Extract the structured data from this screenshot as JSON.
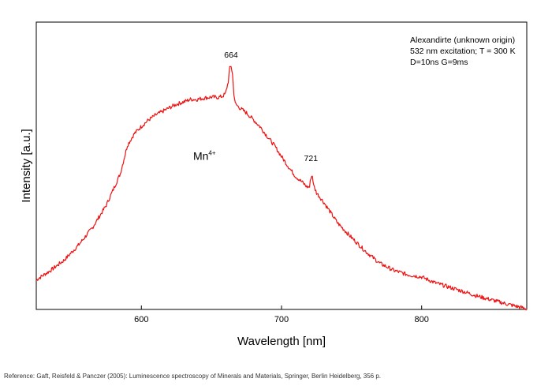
{
  "chart_data": {
    "type": "line",
    "xlabel": "Wavelength [nm]",
    "ylabel": "Intensity [a.u.]",
    "xlim": [
      525,
      875
    ],
    "ylim": [
      0,
      1
    ],
    "x_ticks": [
      600,
      700,
      800
    ],
    "y_ticks_shown": false,
    "grid": false,
    "legend_position": "top-right",
    "legend_lines": [
      "Alexandirte (unknown origin)",
      "532 nm excitation; T = 300 K",
      "D=10ns G=9ms"
    ],
    "annotations": [
      {
        "text": "664",
        "x": 664,
        "y": 0.86
      },
      {
        "text": "721",
        "x": 721,
        "y": 0.5
      }
    ],
    "species_label": {
      "text": "Mn",
      "superscript": "4+",
      "x": 645,
      "y": 0.52
    },
    "color": "#ee1111",
    "series": [
      {
        "x": [
          525,
          535,
          545,
          555,
          565,
          575,
          585,
          590,
          595,
          600,
          605,
          610,
          615,
          620,
          625,
          630,
          635,
          640,
          645,
          650,
          655,
          658,
          660,
          662,
          663,
          664,
          665,
          666,
          667,
          668,
          670,
          675,
          680,
          685,
          690,
          695,
          700,
          705,
          710,
          715,
          718,
          720,
          721,
          722,
          723,
          725,
          730,
          740,
          750,
          760,
          770,
          780,
          790,
          800,
          810,
          820,
          830,
          840,
          850,
          860,
          870,
          875
        ],
        "y": [
          0.103,
          0.135,
          0.172,
          0.223,
          0.284,
          0.363,
          0.473,
          0.571,
          0.612,
          0.637,
          0.659,
          0.676,
          0.689,
          0.702,
          0.714,
          0.722,
          0.731,
          0.731,
          0.736,
          0.739,
          0.738,
          0.742,
          0.751,
          0.793,
          0.839,
          0.848,
          0.819,
          0.752,
          0.716,
          0.711,
          0.702,
          0.684,
          0.66,
          0.634,
          0.601,
          0.57,
          0.532,
          0.496,
          0.463,
          0.442,
          0.427,
          0.426,
          0.461,
          0.465,
          0.43,
          0.406,
          0.374,
          0.301,
          0.25,
          0.202,
          0.161,
          0.136,
          0.121,
          0.113,
          0.092,
          0.077,
          0.062,
          0.046,
          0.033,
          0.02,
          0.008,
          0.002
        ]
      }
    ]
  },
  "reference": "Reference: Gaft, Reisfeld & Panczer (2005): Luminescence spectroscopy of Minerals and Materials, Springer, Berlin Heidelberg, 356 p."
}
